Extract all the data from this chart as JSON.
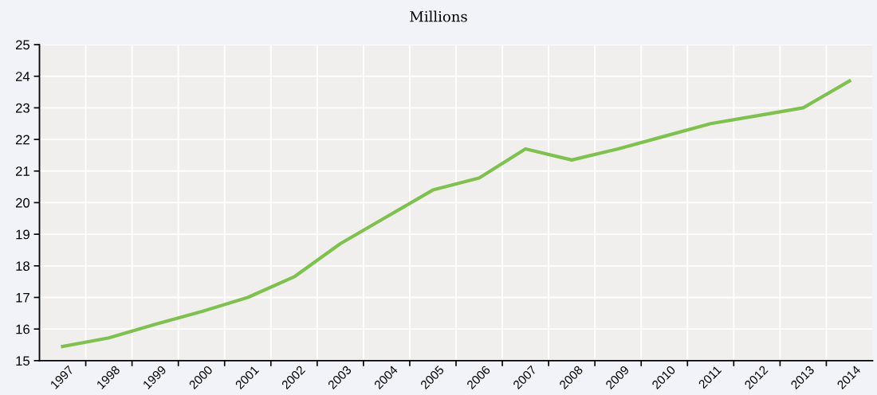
{
  "chart_data": {
    "type": "line",
    "subtitle": "Millions",
    "categories": [
      "1997",
      "1998",
      "1999",
      "2000",
      "2001",
      "2002",
      "2003",
      "2004",
      "2005",
      "2006",
      "2007",
      "2008",
      "2009",
      "2010",
      "2011",
      "2012",
      "2013",
      "2014"
    ],
    "series": [
      {
        "color": "#7dc24b",
        "values": [
          15.45,
          15.72,
          16.15,
          16.55,
          17.0,
          17.65,
          18.7,
          19.55,
          20.4,
          20.78,
          21.7,
          21.35,
          21.7,
          22.1,
          22.5,
          22.75,
          23.0,
          23.85
        ]
      }
    ],
    "ylim": [
      15,
      25
    ],
    "yticks": [
      15,
      16,
      17,
      18,
      19,
      20,
      21,
      22,
      23,
      24,
      25
    ],
    "grid": true,
    "marker": "none",
    "line_style": "solid"
  }
}
